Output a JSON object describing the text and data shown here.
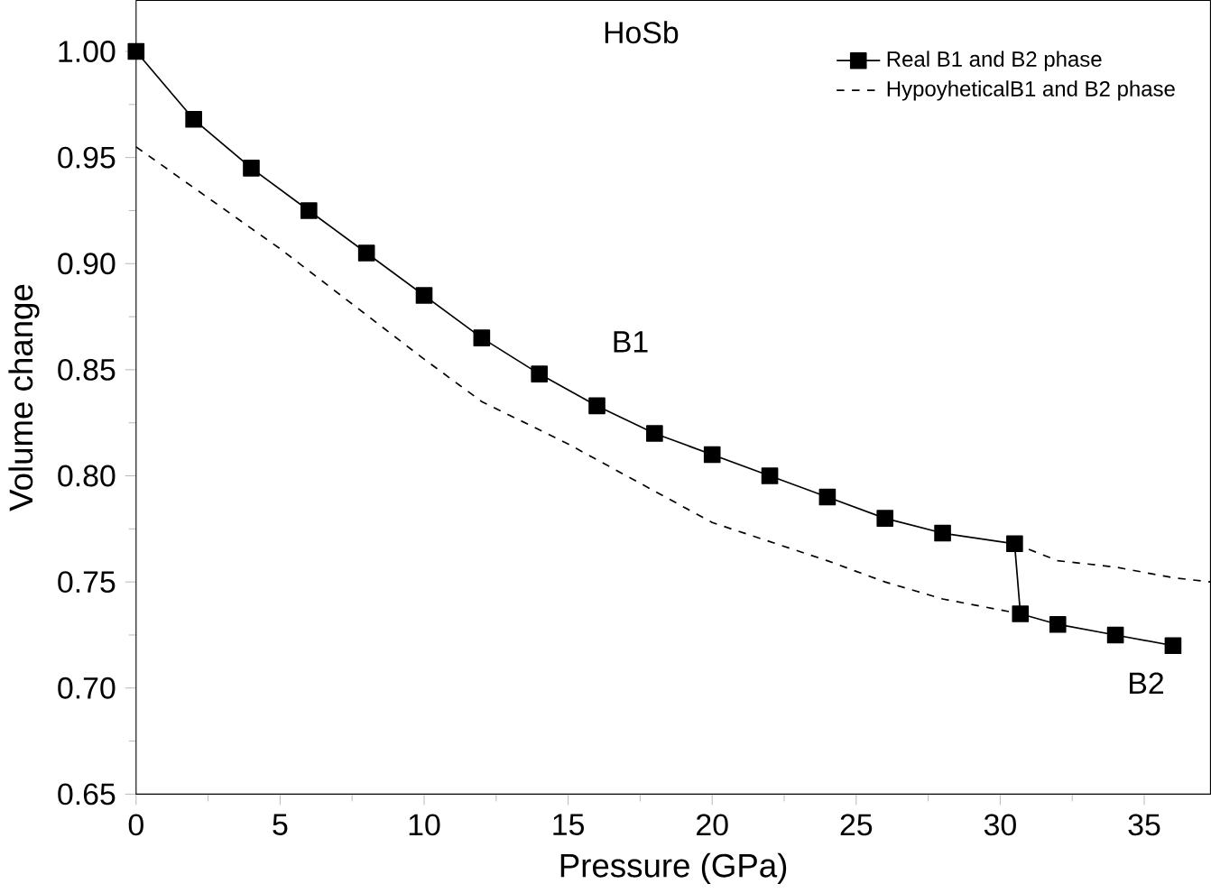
{
  "chart_data": {
    "type": "line",
    "xlabel": "Pressure (GPa)",
    "ylabel": "Volume change",
    "xlim": [
      0,
      37.3
    ],
    "ylim": [
      0.65,
      1.024
    ],
    "xticks": [
      0,
      5,
      10,
      15,
      20,
      25,
      30,
      35
    ],
    "yticks": [
      {
        "value": 0.65,
        "label": "0.65"
      },
      {
        "value": 0.7,
        "label": "0.70"
      },
      {
        "value": 0.75,
        "label": "0.75"
      },
      {
        "value": 0.8,
        "label": "0.80"
      },
      {
        "value": 0.85,
        "label": "0.85"
      },
      {
        "value": 0.9,
        "label": "0.90"
      },
      {
        "value": 0.95,
        "label": "0.95"
      },
      {
        "value": 1.0,
        "label": "1.00"
      }
    ],
    "legend": "top right",
    "grid": false,
    "series": [
      {
        "name": "Real B1 and B2 phase",
        "color": "#000000",
        "marker": "square",
        "line_style": "solid",
        "x": [
          0,
          2,
          4,
          6,
          8,
          10,
          12,
          14,
          16,
          18,
          20,
          22,
          24,
          26,
          28,
          30.5,
          30.7,
          32,
          34,
          36
        ],
        "values": [
          1.0,
          0.968,
          0.945,
          0.925,
          0.905,
          0.885,
          0.865,
          0.848,
          0.833,
          0.82,
          0.81,
          0.8,
          0.79,
          0.78,
          0.773,
          0.768,
          0.735,
          0.73,
          0.725,
          0.72
        ]
      },
      {
        "name": "HypoyheticalB1 and B2 phase",
        "color": "#000000",
        "marker": "none",
        "line_style": "dashed",
        "x": [
          0,
          5,
          10,
          12,
          15,
          20,
          24,
          26,
          28,
          30.7,
          null,
          30.5,
          32,
          34,
          36,
          37.3
        ],
        "values": [
          0.955,
          0.907,
          0.855,
          0.835,
          0.815,
          0.778,
          0.76,
          0.75,
          0.742,
          0.735,
          null,
          0.768,
          0.76,
          0.757,
          0.752,
          0.75
        ]
      }
    ],
    "annotations": [
      "HoSb",
      "B1",
      "B2"
    ]
  }
}
